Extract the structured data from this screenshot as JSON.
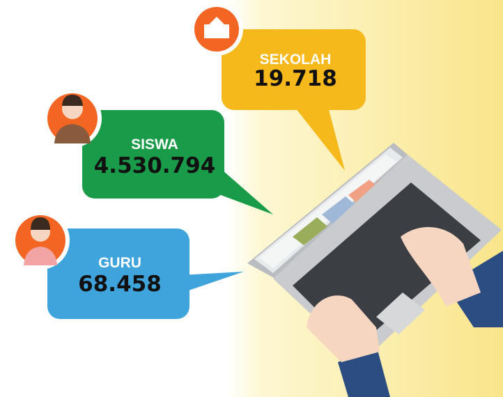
{
  "stats": [
    {
      "label": "SEKOLAH",
      "value": "19.718"
    },
    {
      "label": "SISWA",
      "value": "4.530.794"
    },
    {
      "label": "GURU",
      "value": "68.458"
    }
  ]
}
